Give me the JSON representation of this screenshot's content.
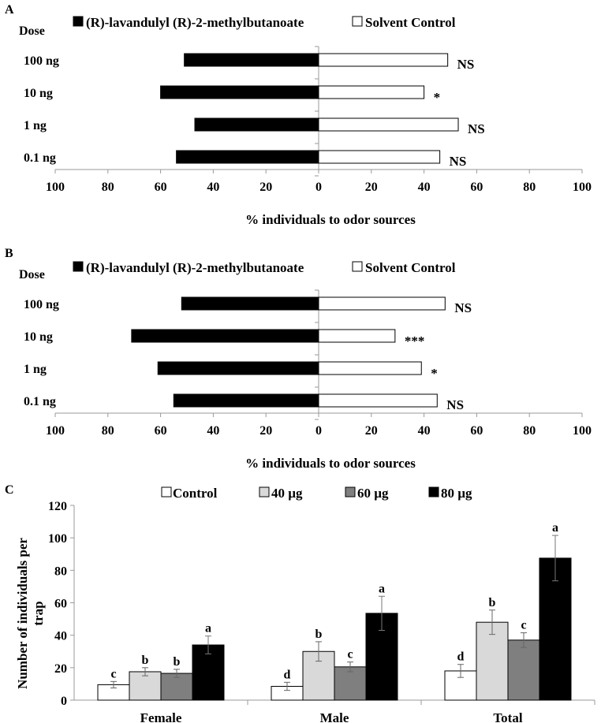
{
  "chart_data": [
    {
      "panel_label": "A",
      "type": "bar",
      "orientation": "horizontal-diverging",
      "dose_heading": "Dose",
      "categories": [
        "100 ng",
        "10 ng",
        "1 ng",
        "0.1 ng"
      ],
      "series": [
        {
          "name": "(R)-lavandulyl (R)-2-methylbutanoate",
          "values": [
            51,
            60,
            47,
            54
          ],
          "color": "#000000"
        },
        {
          "name": "Solvent Control",
          "values": [
            49,
            40,
            53,
            46
          ],
          "color": "#ffffff"
        }
      ],
      "significance": [
        "NS",
        "*",
        "NS",
        "NS"
      ],
      "xticks": [
        "100",
        "80",
        "60",
        "40",
        "20",
        "0",
        "20",
        "40",
        "60",
        "80",
        "100"
      ],
      "xlim": [
        -100,
        100
      ],
      "xlabel": "% individuals to odor sources"
    },
    {
      "panel_label": "B",
      "type": "bar",
      "orientation": "horizontal-diverging",
      "dose_heading": "Dose",
      "categories": [
        "100 ng",
        "10 ng",
        "1 ng",
        "0.1 ng"
      ],
      "series": [
        {
          "name": "(R)-lavandulyl (R)-2-methylbutanoate",
          "values": [
            52,
            71,
            61,
            55
          ],
          "color": "#000000"
        },
        {
          "name": "Solvent Control",
          "values": [
            48,
            29,
            39,
            45
          ],
          "color": "#ffffff"
        }
      ],
      "significance": [
        "NS",
        "***",
        "*",
        "NS"
      ],
      "xticks": [
        "100",
        "80",
        "60",
        "40",
        "20",
        "0",
        "20",
        "40",
        "60",
        "80",
        "100"
      ],
      "xlim": [
        -100,
        100
      ],
      "xlabel": "% individuals to odor sources"
    },
    {
      "panel_label": "C",
      "type": "bar",
      "categories": [
        "Female",
        "Male",
        "Total"
      ],
      "series": [
        {
          "name": "Control",
          "values": [
            9.5,
            8.5,
            18
          ],
          "errors": [
            2,
            2.5,
            4
          ],
          "letters": [
            "c",
            "d",
            "d"
          ],
          "color": "#ffffff"
        },
        {
          "name": "40 µg",
          "values": [
            17.5,
            30,
            48
          ],
          "errors": [
            2.5,
            6,
            7.5
          ],
          "letters": [
            "b",
            "b",
            "b"
          ],
          "color": "#d9d9d9"
        },
        {
          "name": "60 µg",
          "values": [
            16.5,
            20.5,
            37
          ],
          "errors": [
            2.5,
            3,
            4.5
          ],
          "letters": [
            "b",
            "c",
            "c"
          ],
          "color": "#7f7f7f"
        },
        {
          "name": "80 µg",
          "values": [
            34,
            53.5,
            87.5
          ],
          "errors": [
            5.5,
            10.5,
            14
          ],
          "letters": [
            "a",
            "a",
            "a"
          ],
          "color": "#000000"
        }
      ],
      "yticks": [
        "0",
        "20",
        "40",
        "60",
        "80",
        "100",
        "120"
      ],
      "ylim": [
        0,
        120
      ],
      "ylabel_lines": [
        "Number of individuals per",
        "trap"
      ]
    }
  ]
}
